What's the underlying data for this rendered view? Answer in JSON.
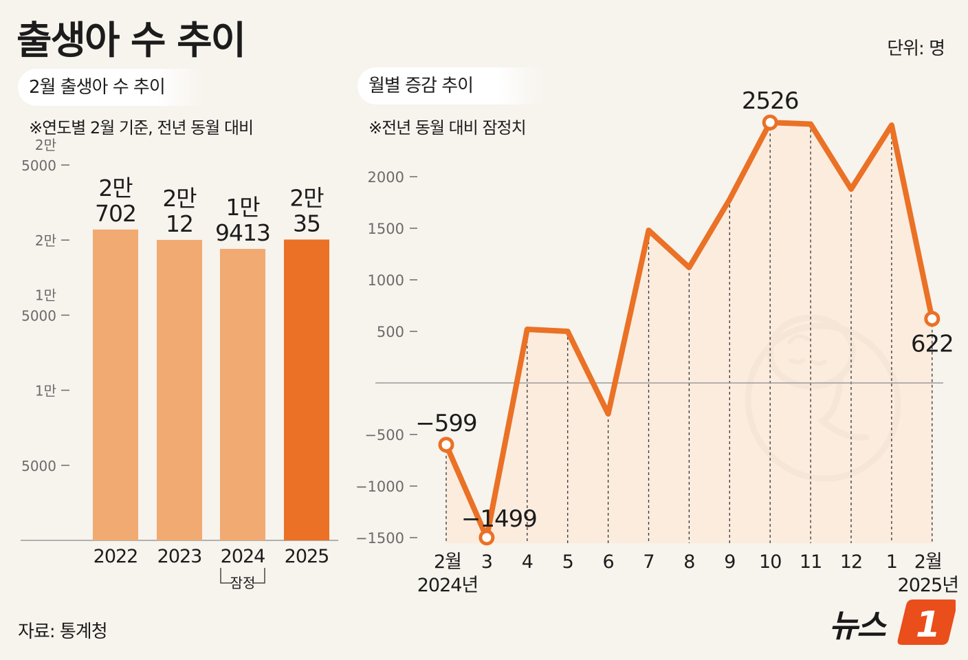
{
  "title": "출생아 수 추이",
  "unit": "단위: 명",
  "source": "자료: 통계청",
  "brand": "뉴스1",
  "colors": {
    "bar_light": "#f0aa72",
    "bar_highlight": "#ea7125",
    "line": "#ea7125",
    "area": "#fbeadb",
    "background": "#f7f3ed",
    "axis_text": "#6b6b6b",
    "zero_line": "#9a9a9a"
  },
  "chart_data": [
    {
      "type": "bar",
      "subtitle": "2월 출생아 수 추이",
      "note": "※연도별 2월 기준, 전년 동월 대비",
      "categories": [
        "2022",
        "2023",
        "2024",
        "2025"
      ],
      "values": [
        20702,
        20012,
        19413,
        20035
      ],
      "value_labels": [
        [
          "2만",
          "702"
        ],
        [
          "2만",
          "12"
        ],
        [
          "1만",
          "9413"
        ],
        [
          "2만",
          "35"
        ]
      ],
      "highlight_index": 3,
      "ylim": [
        0,
        25000
      ],
      "yticks": [
        {
          "value": 5000,
          "lines": [
            "5000"
          ]
        },
        {
          "value": 10000,
          "lines": [
            "1만"
          ]
        },
        {
          "value": 15000,
          "lines": [
            "1만",
            "5000"
          ]
        },
        {
          "value": 20000,
          "lines": [
            "2만"
          ]
        },
        {
          "value": 25000,
          "lines": [
            "2만",
            "5000"
          ]
        }
      ],
      "annotation": {
        "text": "잠정",
        "category": "2024"
      },
      "xlabel": "",
      "ylabel": ""
    },
    {
      "type": "line",
      "subtitle": "월별 증감 추이",
      "note": "※전년 동월 대비 잠정치",
      "categories": [
        [
          "2월",
          "2024년"
        ],
        [
          "3"
        ],
        [
          "4"
        ],
        [
          "5"
        ],
        [
          "6"
        ],
        [
          "7"
        ],
        [
          "8"
        ],
        [
          "9"
        ],
        [
          "10"
        ],
        [
          "11"
        ],
        [
          "12"
        ],
        [
          "1"
        ],
        [
          "2월",
          "2025년"
        ]
      ],
      "values": [
        -599,
        -1499,
        520,
        500,
        -300,
        1480,
        1120,
        1780,
        2526,
        2510,
        1880,
        2500,
        622
      ],
      "labeled_points": [
        {
          "index": 0,
          "label": "−599"
        },
        {
          "index": 1,
          "label": "−1499"
        },
        {
          "index": 8,
          "label": "2526"
        },
        {
          "index": 12,
          "label": "622"
        }
      ],
      "yticks": [
        -1500,
        -1000,
        -500,
        500,
        1000,
        1500,
        2000
      ],
      "ylim": [
        -1500,
        2700
      ],
      "xlabel": "",
      "ylabel": ""
    }
  ]
}
